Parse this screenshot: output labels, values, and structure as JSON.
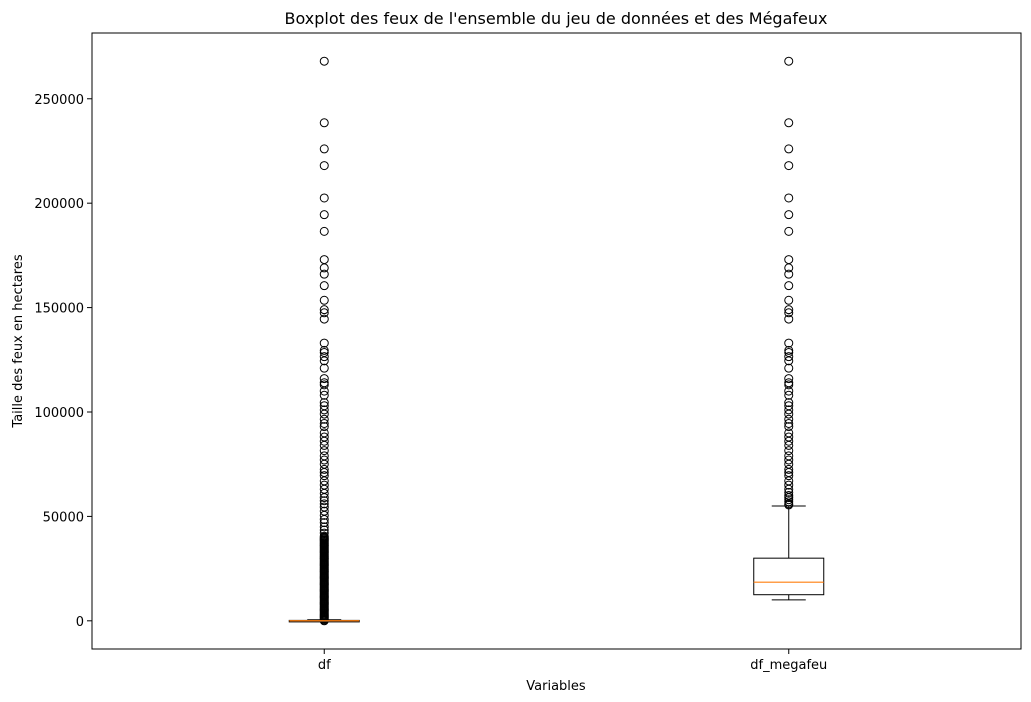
{
  "chart_data": {
    "type": "boxplot",
    "title": "Boxplot des feux de l'ensemble du jeu de données et des Mégafeux",
    "xlabel": "Variables",
    "ylabel": "Taille des feux en hectares",
    "categories": [
      "df",
      "df_megafeu"
    ],
    "ylim": [
      -13500,
      281500
    ],
    "yticks": [
      0,
      50000,
      100000,
      150000,
      200000,
      250000
    ],
    "grid": false,
    "colors": {
      "box": "#000000",
      "median": "#ff7f0e",
      "flier": "#000000"
    },
    "boxes": [
      {
        "name": "df",
        "whislo": 0,
        "q1": 0,
        "median": 30,
        "q3": 200,
        "whishi": 500,
        "fliers_dense_range": [
          0,
          40000
        ],
        "fliers": [
          268000,
          238500,
          226000,
          218000,
          202500,
          194500,
          186500,
          173000,
          169000,
          166000,
          160500,
          153500,
          149000,
          147500,
          144500,
          133000,
          129500,
          128500,
          126500,
          124500,
          121000,
          116000,
          114000,
          113000,
          110000,
          108000,
          104500,
          103000,
          101000,
          99000,
          96500,
          94500,
          93000,
          90000,
          88000,
          86000,
          84000,
          81500,
          79000,
          77000,
          75000,
          72500,
          71000,
          69500,
          67000,
          65000,
          63000,
          61000,
          59000,
          57500,
          56000,
          54500,
          52500,
          50500,
          48500,
          47000,
          45000,
          43500,
          42000,
          40500
        ]
      },
      {
        "name": "df_megafeu",
        "whislo": 10000,
        "q1": 12500,
        "median": 18500,
        "q3": 30000,
        "whishi": 55000,
        "fliers": [
          268000,
          238500,
          226000,
          218000,
          202500,
          194500,
          186500,
          173000,
          169000,
          166000,
          160500,
          153500,
          149000,
          147500,
          144500,
          133000,
          129500,
          128500,
          126500,
          124500,
          121000,
          116000,
          114000,
          113000,
          110000,
          108000,
          104500,
          103000,
          101000,
          99000,
          96500,
          94500,
          93000,
          90000,
          88000,
          86000,
          84000,
          81500,
          79000,
          77000,
          75000,
          72500,
          71000,
          69500,
          67000,
          65000,
          63000,
          61500,
          60000,
          59000,
          58000,
          57000,
          56000,
          55500
        ]
      }
    ]
  }
}
